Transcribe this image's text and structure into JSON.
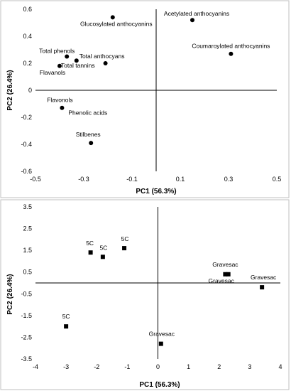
{
  "chart_data": [
    {
      "type": "scatter",
      "marker": "circle",
      "xlabel": "PC1 (56.3%)",
      "ylabel": "PC2 (26.4%)",
      "xlim": [
        -0.5,
        0.5
      ],
      "ylim": [
        -0.6,
        0.6
      ],
      "xticks": [
        "-0.5",
        "-0.3",
        "-0.1",
        "0.1",
        "0.3",
        "0.5"
      ],
      "yticks": [
        "0.6",
        "0.4",
        "0.2",
        "0",
        "-0.2",
        "-0.4",
        "-0.6"
      ],
      "grid": false,
      "points": [
        {
          "label": "Glucosylated anthocyanins",
          "x": -0.18,
          "y": 0.54,
          "anchor": "middle"
        },
        {
          "label": "Acetylated anthocyanins",
          "x": 0.15,
          "y": 0.52,
          "anchor": "middle"
        },
        {
          "label": "Coumaroylated anthocyanins",
          "x": 0.31,
          "y": 0.27,
          "anchor": "middle"
        },
        {
          "label": "Total phenols",
          "x": -0.37,
          "y": 0.25,
          "anchor": "middle"
        },
        {
          "label": "Total anthocyans",
          "x": -0.21,
          "y": 0.2,
          "anchor": "middle"
        },
        {
          "label": "Total tannins",
          "x": -0.33,
          "y": 0.22,
          "anchor": "middle"
        },
        {
          "label": "Flavanols",
          "x": -0.4,
          "y": 0.18,
          "anchor": "middle"
        },
        {
          "label": "Flavonols",
          "x": -0.39,
          "y": -0.13,
          "anchor": "middle"
        },
        {
          "label": "Phenolic acids",
          "x": -0.39,
          "y": -0.13,
          "anchor": "start"
        },
        {
          "label": "Stilbenes",
          "x": -0.27,
          "y": -0.39,
          "anchor": "middle"
        }
      ]
    },
    {
      "type": "scatter",
      "marker": "square",
      "xlabel": "PC1 (56.3%)",
      "ylabel": "PC2 (26.4%)",
      "xlim": [
        -4,
        4
      ],
      "ylim": [
        -3.5,
        3.5
      ],
      "xticks": [
        "-4",
        "-3",
        "-2",
        "-1",
        "0",
        "1",
        "2",
        "3",
        "4"
      ],
      "yticks": [
        "3.5",
        "2.5",
        "1.5",
        "0.5",
        "-0.5",
        "-1.5",
        "-2.5",
        "-3.5"
      ],
      "grid": false,
      "points": [
        {
          "label": "5C",
          "x": -2.2,
          "y": 1.4
        },
        {
          "label": "5C",
          "x": -1.8,
          "y": 1.2
        },
        {
          "label": "5C",
          "x": -1.1,
          "y": 1.6
        },
        {
          "label": "5C",
          "x": -3.0,
          "y": -2.0
        },
        {
          "label": "Gravesac",
          "x": 2.2,
          "y": 0.4
        },
        {
          "label": "Gravesac",
          "x": 2.3,
          "y": 0.4
        },
        {
          "label": "Gravesac",
          "x": 3.4,
          "y": -0.2
        },
        {
          "label": "Gravesac",
          "x": 0.1,
          "y": -2.8
        }
      ]
    }
  ]
}
